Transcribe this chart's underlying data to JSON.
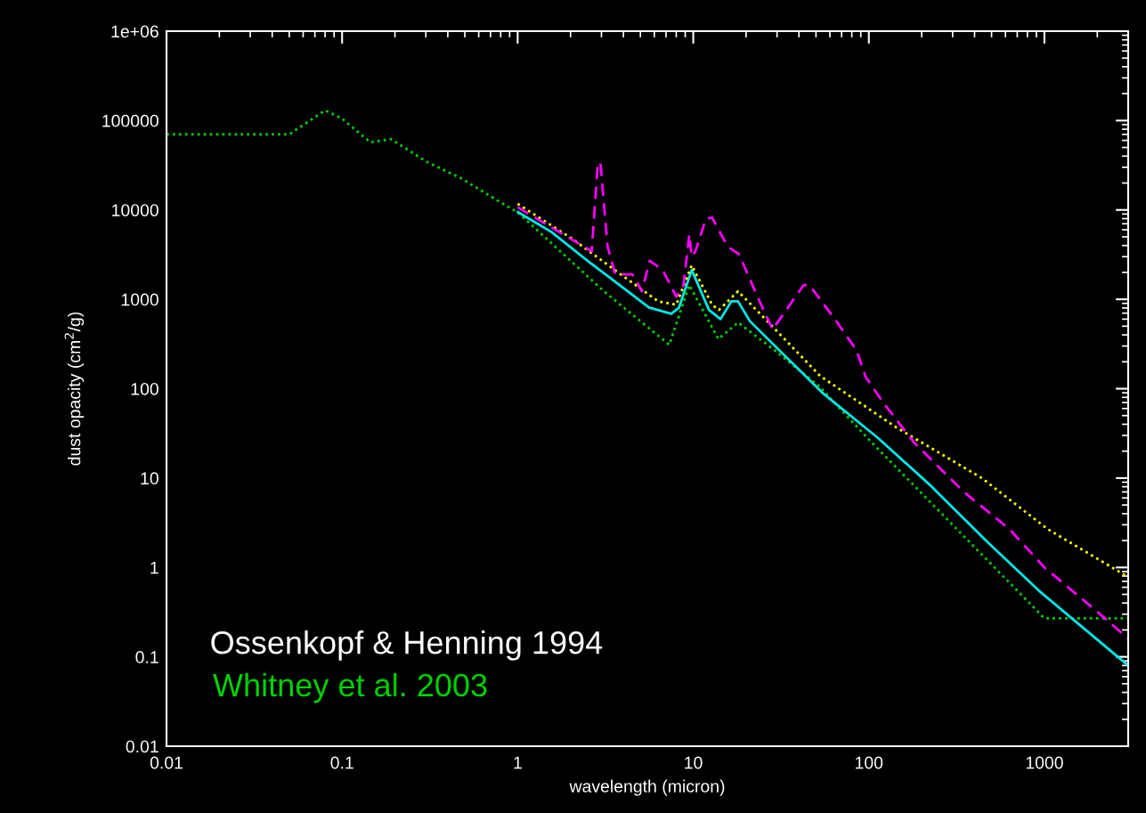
{
  "chart_data": {
    "type": "line",
    "xlabel": "wavelength (micron)",
    "ylabel": "dust opacity (cm$^{2}$/g)",
    "log": "xy",
    "grid": false,
    "legend": "bottom left",
    "xlim": [
      0.01,
      3000
    ],
    "ylim": [
      0.01,
      1000000
    ],
    "xticks": [
      0.01,
      0.1,
      1,
      10,
      100,
      1000
    ],
    "yticks": [
      0.01,
      0.1,
      1,
      10,
      100,
      1000,
      10000,
      100000,
      {
        "value": 1000000,
        "label": "1e+06"
      }
    ],
    "annotations": [
      "Ossenkopf & Henning 1994"
    ],
    "series": [
      {
        "name": "Whitney et al. 2003",
        "color": "#00d000",
        "line_style": "dotted",
        "x": [
          0.01,
          0.05,
          0.08,
          0.1,
          0.145,
          0.19,
          0.3,
          0.48,
          0.77,
          1,
          3.1,
          7.3,
          9.5,
          13.9,
          18,
          29,
          52,
          100,
          1000,
          3000
        ],
        "values": [
          70000,
          70000,
          130000,
          105000,
          57000,
          62000,
          35000,
          22400,
          12700,
          9400,
          1230,
          310,
          1440,
          360,
          550,
          270,
          107,
          27,
          0.27,
          0.27
        ]
      },
      {
        "color": "#00e8e8",
        "line_style": "solid",
        "x": [
          1,
          1.56,
          2.5,
          4,
          5.6,
          7.5,
          8.3,
          9.8,
          12.3,
          14.3,
          16.5,
          18,
          21,
          54,
          113,
          230,
          464,
          930,
          3000
        ],
        "values": [
          9500,
          5650,
          2700,
          1340,
          810,
          690,
          810,
          2130,
          760,
          600,
          950,
          950,
          570,
          91,
          28,
          7.9,
          2.0,
          0.55,
          0.08
        ]
      },
      {
        "color": "#ffff00",
        "line_style": "dotted",
        "x": [
          1,
          2,
          4,
          6.3,
          8,
          9.8,
          12.8,
          14,
          18,
          30,
          53,
          143,
          440,
          1040,
          3000
        ],
        "values": [
          11700,
          4900,
          1810,
          950,
          870,
          2400,
          870,
          760,
          1230,
          440,
          138,
          37,
          10,
          2.7,
          0.78
        ]
      },
      {
        "color": "#ff00ff",
        "line_style": "dashed",
        "x": [
          1,
          2.64,
          2.86,
          2.96,
          3.25,
          3.6,
          4.5,
          5.1,
          5.65,
          6.7,
          8,
          8.8,
          9.5,
          9.8,
          10.3,
          11.8,
          12.8,
          15.7,
          18.2,
          23.7,
          28.3,
          42.5,
          46,
          65,
          85,
          96,
          122,
          181,
          350,
          630,
          1000,
          2000,
          3000
        ],
        "values": [
          10700,
          3450,
          33000,
          34000,
          3900,
          1900,
          1900,
          1230,
          2700,
          2130,
          1070,
          1440,
          5350,
          3000,
          3450,
          8000,
          8200,
          3880,
          3200,
          980,
          460,
          1440,
          1440,
          575,
          270,
          135,
          68,
          25,
          6.9,
          2.7,
          1.0,
          0.32,
          0.16
        ]
      }
    ]
  }
}
